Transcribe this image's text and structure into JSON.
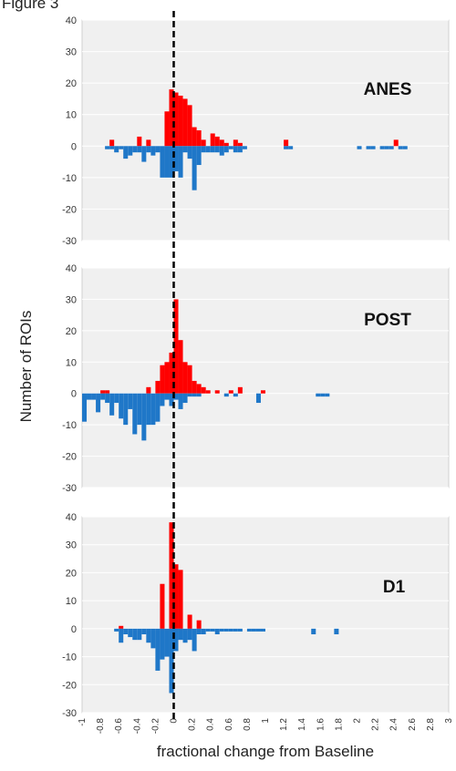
{
  "figure_label": "Figure 3",
  "xlabel": "fractional change from Baseline",
  "ylabel": "Number of ROIs",
  "colors": {
    "positive": "#ff0000",
    "negative": "#1f77c8",
    "plot_bg": "#f0f0f0",
    "grid": "#ffffff",
    "baseline": "#000000"
  },
  "chart_data": [
    {
      "type": "bar",
      "title": "ANES",
      "ylim": [
        -30,
        40
      ],
      "yticks": [
        40,
        30,
        20,
        10,
        0,
        -10,
        -20,
        -30
      ],
      "bin_width": 0.05,
      "positive": [
        {
          "x": -0.7,
          "y": 2
        },
        {
          "x": -0.4,
          "y": 3
        },
        {
          "x": -0.3,
          "y": 2
        },
        {
          "x": -0.1,
          "y": 11
        },
        {
          "x": -0.05,
          "y": 18
        },
        {
          "x": 0.0,
          "y": 17
        },
        {
          "x": 0.05,
          "y": 16
        },
        {
          "x": 0.1,
          "y": 15
        },
        {
          "x": 0.15,
          "y": 13
        },
        {
          "x": 0.2,
          "y": 6
        },
        {
          "x": 0.25,
          "y": 5
        },
        {
          "x": 0.3,
          "y": 2
        },
        {
          "x": 0.4,
          "y": 4
        },
        {
          "x": 0.45,
          "y": 3
        },
        {
          "x": 0.5,
          "y": 2
        },
        {
          "x": 0.55,
          "y": 1
        },
        {
          "x": 0.65,
          "y": 2
        },
        {
          "x": 0.7,
          "y": 1
        },
        {
          "x": 1.2,
          "y": 2
        },
        {
          "x": 2.4,
          "y": 2
        }
      ],
      "negative": [
        {
          "x": -0.75,
          "y": -1
        },
        {
          "x": -0.7,
          "y": -1
        },
        {
          "x": -0.65,
          "y": -2
        },
        {
          "x": -0.6,
          "y": -1
        },
        {
          "x": -0.55,
          "y": -4
        },
        {
          "x": -0.5,
          "y": -3
        },
        {
          "x": -0.45,
          "y": -2
        },
        {
          "x": -0.4,
          "y": -2
        },
        {
          "x": -0.35,
          "y": -5
        },
        {
          "x": -0.3,
          "y": -2
        },
        {
          "x": -0.25,
          "y": -3
        },
        {
          "x": -0.2,
          "y": -2
        },
        {
          "x": -0.15,
          "y": -10
        },
        {
          "x": -0.1,
          "y": -10
        },
        {
          "x": -0.05,
          "y": -10
        },
        {
          "x": 0.0,
          "y": -8
        },
        {
          "x": 0.05,
          "y": -10
        },
        {
          "x": 0.1,
          "y": -2
        },
        {
          "x": 0.15,
          "y": -4
        },
        {
          "x": 0.2,
          "y": -14
        },
        {
          "x": 0.25,
          "y": -6
        },
        {
          "x": 0.3,
          "y": -2
        },
        {
          "x": 0.35,
          "y": -2
        },
        {
          "x": 0.4,
          "y": -2
        },
        {
          "x": 0.45,
          "y": -2
        },
        {
          "x": 0.5,
          "y": -3
        },
        {
          "x": 0.55,
          "y": -2
        },
        {
          "x": 0.6,
          "y": -1
        },
        {
          "x": 0.65,
          "y": -2
        },
        {
          "x": 0.7,
          "y": -2
        },
        {
          "x": 0.75,
          "y": -1
        },
        {
          "x": 1.2,
          "y": -1
        },
        {
          "x": 1.25,
          "y": -1
        },
        {
          "x": 2.0,
          "y": -1
        },
        {
          "x": 2.1,
          "y": -1
        },
        {
          "x": 2.15,
          "y": -1
        },
        {
          "x": 2.25,
          "y": -1
        },
        {
          "x": 2.3,
          "y": -1
        },
        {
          "x": 2.35,
          "y": -1
        },
        {
          "x": 2.45,
          "y": -1
        },
        {
          "x": 2.5,
          "y": -1
        }
      ]
    },
    {
      "type": "bar",
      "title": "POST",
      "ylim": [
        -30,
        40
      ],
      "yticks": [
        40,
        30,
        20,
        10,
        0,
        -10,
        -20,
        -30
      ],
      "bin_width": 0.05,
      "positive": [
        {
          "x": -0.8,
          "y": 1
        },
        {
          "x": -0.75,
          "y": 1
        },
        {
          "x": -0.3,
          "y": 2
        },
        {
          "x": -0.2,
          "y": 4
        },
        {
          "x": -0.15,
          "y": 9
        },
        {
          "x": -0.1,
          "y": 10
        },
        {
          "x": -0.05,
          "y": 13
        },
        {
          "x": 0.0,
          "y": 30
        },
        {
          "x": 0.05,
          "y": 17
        },
        {
          "x": 0.1,
          "y": 10
        },
        {
          "x": 0.15,
          "y": 9
        },
        {
          "x": 0.2,
          "y": 4
        },
        {
          "x": 0.25,
          "y": 3
        },
        {
          "x": 0.3,
          "y": 2
        },
        {
          "x": 0.35,
          "y": 1
        },
        {
          "x": 0.45,
          "y": 1
        },
        {
          "x": 0.6,
          "y": 1
        },
        {
          "x": 0.7,
          "y": 2
        },
        {
          "x": 0.95,
          "y": 1
        }
      ],
      "negative": [
        {
          "x": -1.0,
          "y": -9
        },
        {
          "x": -0.95,
          "y": -2
        },
        {
          "x": -0.9,
          "y": -2
        },
        {
          "x": -0.85,
          "y": -6
        },
        {
          "x": -0.8,
          "y": -2
        },
        {
          "x": -0.75,
          "y": -3
        },
        {
          "x": -0.7,
          "y": -7
        },
        {
          "x": -0.65,
          "y": -3
        },
        {
          "x": -0.6,
          "y": -8
        },
        {
          "x": -0.55,
          "y": -10
        },
        {
          "x": -0.5,
          "y": -5
        },
        {
          "x": -0.45,
          "y": -13
        },
        {
          "x": -0.4,
          "y": -10
        },
        {
          "x": -0.35,
          "y": -15
        },
        {
          "x": -0.3,
          "y": -10
        },
        {
          "x": -0.25,
          "y": -10
        },
        {
          "x": -0.2,
          "y": -9
        },
        {
          "x": -0.15,
          "y": -4
        },
        {
          "x": -0.1,
          "y": -2
        },
        {
          "x": -0.05,
          "y": -4
        },
        {
          "x": 0.0,
          "y": -2
        },
        {
          "x": 0.05,
          "y": -5
        },
        {
          "x": 0.1,
          "y": -3
        },
        {
          "x": 0.15,
          "y": -1
        },
        {
          "x": 0.2,
          "y": -1
        },
        {
          "x": 0.25,
          "y": -1
        },
        {
          "x": 0.55,
          "y": -1
        },
        {
          "x": 0.65,
          "y": -1
        },
        {
          "x": 0.9,
          "y": -3
        },
        {
          "x": 1.55,
          "y": -1
        },
        {
          "x": 1.6,
          "y": -1
        },
        {
          "x": 1.65,
          "y": -1
        }
      ]
    },
    {
      "type": "bar",
      "title": "D1",
      "ylim": [
        -30,
        40
      ],
      "yticks": [
        40,
        30,
        20,
        10,
        0,
        -10,
        -20,
        -30
      ],
      "xticks": [
        -1,
        -0.8,
        -0.6,
        -0.4,
        -0.2,
        0,
        0.2,
        0.4,
        0.6,
        0.8,
        1,
        1.2,
        1.4,
        1.6,
        1.8,
        2,
        2.2,
        2.4,
        2.6,
        2.8,
        3
      ],
      "bin_width": 0.05,
      "positive": [
        {
          "x": -0.6,
          "y": 1
        },
        {
          "x": -0.15,
          "y": 16
        },
        {
          "x": -0.05,
          "y": 38
        },
        {
          "x": 0.0,
          "y": 23
        },
        {
          "x": 0.05,
          "y": 21
        },
        {
          "x": 0.15,
          "y": 5
        },
        {
          "x": 0.25,
          "y": 3
        }
      ],
      "negative": [
        {
          "x": -0.65,
          "y": -1
        },
        {
          "x": -0.6,
          "y": -5
        },
        {
          "x": -0.55,
          "y": -2
        },
        {
          "x": -0.5,
          "y": -3
        },
        {
          "x": -0.45,
          "y": -4
        },
        {
          "x": -0.4,
          "y": -4
        },
        {
          "x": -0.35,
          "y": -2
        },
        {
          "x": -0.3,
          "y": -5
        },
        {
          "x": -0.25,
          "y": -7
        },
        {
          "x": -0.2,
          "y": -15
        },
        {
          "x": -0.15,
          "y": -11
        },
        {
          "x": -0.1,
          "y": -10
        },
        {
          "x": -0.05,
          "y": -23
        },
        {
          "x": 0.0,
          "y": -8
        },
        {
          "x": 0.05,
          "y": -4
        },
        {
          "x": 0.1,
          "y": -5
        },
        {
          "x": 0.15,
          "y": -4
        },
        {
          "x": 0.2,
          "y": -8
        },
        {
          "x": 0.25,
          "y": -2
        },
        {
          "x": 0.3,
          "y": -2
        },
        {
          "x": 0.35,
          "y": -1
        },
        {
          "x": 0.4,
          "y": -1
        },
        {
          "x": 0.45,
          "y": -2
        },
        {
          "x": 0.5,
          "y": -1
        },
        {
          "x": 0.55,
          "y": -1
        },
        {
          "x": 0.6,
          "y": -1
        },
        {
          "x": 0.65,
          "y": -1
        },
        {
          "x": 0.7,
          "y": -1
        },
        {
          "x": 0.8,
          "y": -1
        },
        {
          "x": 0.85,
          "y": -1
        },
        {
          "x": 0.9,
          "y": -1
        },
        {
          "x": 0.95,
          "y": -1
        },
        {
          "x": 1.5,
          "y": -2
        },
        {
          "x": 1.75,
          "y": -2
        }
      ]
    }
  ]
}
